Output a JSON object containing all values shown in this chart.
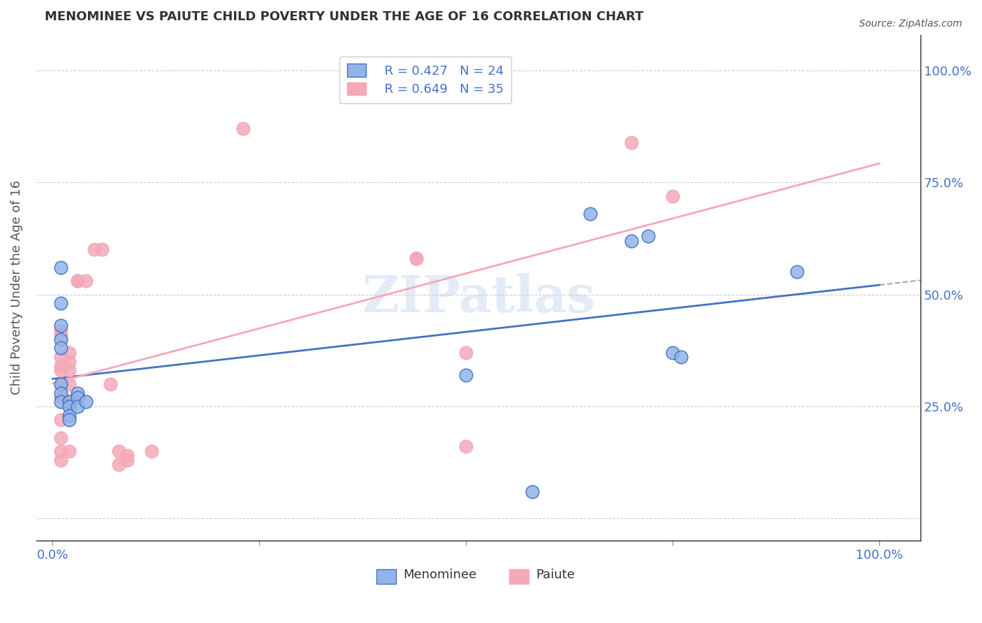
{
  "title": "MENOMINEE VS PAIUTE CHILD POVERTY UNDER THE AGE OF 16 CORRELATION CHART",
  "source": "Source: ZipAtlas.com",
  "ylabel": "Child Poverty Under the Age of 16",
  "menominee_R": "R = 0.427",
  "menominee_N": "N = 24",
  "paiute_R": "R = 0.649",
  "paiute_N": "N = 35",
  "menominee_color": "#92b4e8",
  "paiute_color": "#f4a8b8",
  "menominee_line_color": "#4472c4",
  "paiute_line_color": "#e06080",
  "watermark": "ZIPatlas",
  "menominee_points": [
    [
      0.01,
      0.56
    ],
    [
      0.01,
      0.48
    ],
    [
      0.01,
      0.43
    ],
    [
      0.01,
      0.4
    ],
    [
      0.01,
      0.38
    ],
    [
      0.01,
      0.3
    ],
    [
      0.01,
      0.28
    ],
    [
      0.01,
      0.26
    ],
    [
      0.02,
      0.26
    ],
    [
      0.02,
      0.25
    ],
    [
      0.02,
      0.23
    ],
    [
      0.02,
      0.22
    ],
    [
      0.03,
      0.28
    ],
    [
      0.03,
      0.27
    ],
    [
      0.03,
      0.25
    ],
    [
      0.04,
      0.26
    ],
    [
      0.5,
      0.32
    ],
    [
      0.65,
      0.68
    ],
    [
      0.7,
      0.62
    ],
    [
      0.72,
      0.63
    ],
    [
      0.75,
      0.37
    ],
    [
      0.76,
      0.36
    ],
    [
      0.9,
      0.55
    ],
    [
      0.58,
      0.06
    ]
  ],
  "paiute_points": [
    [
      0.01,
      0.42
    ],
    [
      0.01,
      0.41
    ],
    [
      0.01,
      0.36
    ],
    [
      0.01,
      0.34
    ],
    [
      0.01,
      0.33
    ],
    [
      0.01,
      0.3
    ],
    [
      0.01,
      0.27
    ],
    [
      0.01,
      0.22
    ],
    [
      0.01,
      0.18
    ],
    [
      0.01,
      0.15
    ],
    [
      0.01,
      0.13
    ],
    [
      0.02,
      0.37
    ],
    [
      0.02,
      0.35
    ],
    [
      0.02,
      0.33
    ],
    [
      0.02,
      0.3
    ],
    [
      0.02,
      0.26
    ],
    [
      0.02,
      0.15
    ],
    [
      0.03,
      0.53
    ],
    [
      0.03,
      0.53
    ],
    [
      0.04,
      0.53
    ],
    [
      0.05,
      0.6
    ],
    [
      0.06,
      0.6
    ],
    [
      0.07,
      0.3
    ],
    [
      0.08,
      0.15
    ],
    [
      0.08,
      0.12
    ],
    [
      0.09,
      0.14
    ],
    [
      0.09,
      0.13
    ],
    [
      0.12,
      0.15
    ],
    [
      0.23,
      0.87
    ],
    [
      0.44,
      0.58
    ],
    [
      0.44,
      0.58
    ],
    [
      0.5,
      0.37
    ],
    [
      0.5,
      0.16
    ],
    [
      0.7,
      0.84
    ],
    [
      0.75,
      0.72
    ]
  ]
}
